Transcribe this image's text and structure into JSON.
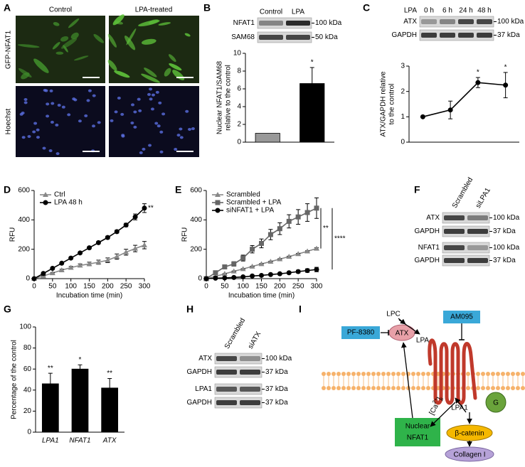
{
  "panel_labels": [
    "A",
    "B",
    "C",
    "D",
    "E",
    "F",
    "G",
    "H",
    "I"
  ],
  "panel_a": {
    "columns": [
      "Control",
      "LPA-treated"
    ],
    "rows": [
      "GFP-NFAT1",
      "Hoechst"
    ]
  },
  "blot_b": {
    "lanes": [
      "Control",
      "LPA"
    ],
    "rows": [
      "NFAT1",
      "SAM68"
    ],
    "markers": [
      "100 kDa",
      "50 kDa"
    ]
  },
  "blot_c": {
    "treatment": "LPA",
    "lanes": [
      "0 h",
      "6 h",
      "24 h",
      "48 h"
    ],
    "rows": [
      "ATX",
      "GAPDH"
    ],
    "markers": [
      "100 kDa",
      "37 kDa"
    ]
  },
  "blot_f": {
    "lanes": [
      "Scrambled",
      "siLPA1"
    ],
    "rows": [
      "ATX",
      "GAPDH",
      "NFAT1",
      "GAPDH"
    ],
    "markers": [
      "100 kDa",
      "37 kDa",
      "100 kDa",
      "37 kDa"
    ]
  },
  "blot_h": {
    "lanes": [
      "Scrambled",
      "siATX"
    ],
    "rows": [
      "ATX",
      "GAPDH",
      "LPA1",
      "GAPDH"
    ],
    "markers": [
      "100 kDa",
      "37 kDa",
      "37 kDa",
      "37 kDa"
    ]
  },
  "diagram": {
    "lpc": "LPC",
    "atx": "ATX",
    "lpa": "LPA",
    "inhibitor_1": "PF-8380",
    "inhibitor_2": "AM095",
    "receptor": "LPA1",
    "g_protein": "G",
    "beta_catenin": "β-catenin",
    "collagen": "Collagen I",
    "nfat": [
      "Nuclear",
      "NFAT1"
    ],
    "calcium": [
      "[Ca",
      "2+",
      "]",
      "i"
    ]
  },
  "chart_data": [
    {
      "type": "bar",
      "categories": [
        null,
        null
      ],
      "values": [
        1,
        6.6
      ],
      "errors": [
        null,
        1.8
      ],
      "colors": [
        "#999999",
        "#000000"
      ],
      "ylabel": [
        "Nuclear NFAT1/SAM68",
        "relative to the control"
      ],
      "ylim": [
        0,
        10
      ],
      "yticks": [
        0,
        2,
        4,
        6,
        8,
        10
      ],
      "value_annotations": [
        null,
        "*"
      ]
    },
    {
      "type": "line",
      "categories": [
        null,
        null,
        null,
        null
      ],
      "series": [
        {
          "color": "#000000",
          "marker": "circle",
          "values": [
            1,
            1.27,
            2.35,
            2.25
          ],
          "errors": [
            null,
            0.35,
            0.2,
            0.5
          ]
        }
      ],
      "ylabel": [
        "ATX/GAPDH relative",
        "to the control"
      ],
      "ylim": [
        0,
        3
      ],
      "yticks": [
        0,
        1,
        2,
        3
      ],
      "value_annotations": [
        null,
        null,
        "*",
        "*"
      ]
    },
    {
      "type": "line",
      "x": [
        0,
        25,
        50,
        75,
        100,
        125,
        150,
        175,
        200,
        225,
        250,
        275,
        300
      ],
      "series": [
        {
          "name": "Ctrl",
          "color": "#888888",
          "marker": "triangle",
          "values": [
            0,
            18,
            38,
            58,
            75,
            90,
            100,
            112,
            125,
            150,
            180,
            205,
            228
          ],
          "errors": [
            0,
            3,
            4,
            6,
            8,
            10,
            12,
            14,
            16,
            18,
            20,
            22,
            25
          ]
        },
        {
          "name": "LPA 48 h",
          "color": "#000000",
          "marker": "circle",
          "values": [
            0,
            35,
            70,
            105,
            140,
            175,
            210,
            245,
            280,
            320,
            365,
            420,
            480
          ],
          "errors": [
            0,
            2,
            3,
            4,
            5,
            6,
            7,
            8,
            9,
            10,
            12,
            20,
            30
          ]
        }
      ],
      "xlabel": "Incubation time (min)",
      "ylabel": [
        "RFU"
      ],
      "xlim": [
        0,
        300
      ],
      "xticks": [
        0,
        50,
        100,
        150,
        200,
        250,
        300
      ],
      "ylim": [
        0,
        600
      ],
      "yticks": [
        0,
        200,
        400,
        600
      ],
      "annotation": "**"
    },
    {
      "type": "line",
      "x": [
        0,
        25,
        50,
        75,
        100,
        125,
        150,
        175,
        200,
        225,
        250,
        275,
        300
      ],
      "series": [
        {
          "name": "Scrambled",
          "color": "#888888",
          "marker": "triangle",
          "values": [
            0,
            15,
            33,
            50,
            66,
            83,
            100,
            116,
            133,
            150,
            168,
            186,
            205
          ],
          "errors": [
            0,
            1,
            1,
            2,
            2,
            2,
            3,
            3,
            3,
            3,
            4,
            4,
            5
          ]
        },
        {
          "name": "Scrambled + LPA",
          "color": "#666666",
          "marker": "square",
          "values": [
            0,
            40,
            80,
            100,
            140,
            200,
            240,
            300,
            340,
            390,
            420,
            450,
            480
          ],
          "errors": [
            0,
            8,
            10,
            15,
            20,
            25,
            30,
            35,
            40,
            45,
            50,
            60,
            70
          ]
        },
        {
          "name": "siNFAT1 + LPA",
          "color": "#000000",
          "marker": "circle",
          "values": [
            0,
            3,
            5,
            8,
            12,
            18,
            22,
            28,
            33,
            40,
            48,
            55,
            62
          ],
          "errors": [
            0,
            2,
            2,
            3,
            3,
            4,
            5,
            6,
            7,
            8,
            10,
            12,
            15
          ]
        }
      ],
      "xlabel": "Incubation time (min)",
      "ylabel": [
        "RFU"
      ],
      "xlim": [
        0,
        300
      ],
      "xticks": [
        0,
        50,
        100,
        150,
        200,
        250,
        300
      ],
      "ylim": [
        0,
        600
      ],
      "yticks": [
        0,
        200,
        400,
        600
      ],
      "annotations": [
        "**",
        "****"
      ]
    },
    {
      "type": "bar",
      "categories": [
        "LPA1",
        "NFAT1",
        "ATX"
      ],
      "values": [
        46,
        60,
        42
      ],
      "errors": [
        10,
        4,
        9
      ],
      "color": "#000000",
      "ylabel": [
        "Percentage of the control"
      ],
      "ylim": [
        0,
        100
      ],
      "yticks": [
        0,
        20,
        40,
        60,
        80,
        100
      ],
      "value_annotations": [
        "**",
        "*",
        "**"
      ]
    }
  ]
}
